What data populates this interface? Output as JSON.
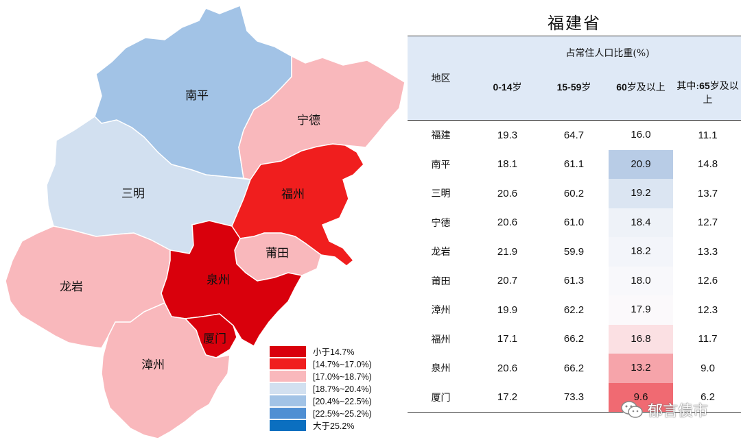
{
  "title": "福建省",
  "colors": {
    "lt_14_7": "#d9000c",
    "r_14_7_17_0": "#f01e1e",
    "r_17_0_18_7": "#f9b8bc",
    "r_18_7_20_4": "#d2e0f0",
    "r_20_4_22_5": "#a2c3e6",
    "r_22_5_25_2": "#4f8fd3",
    "gt_25_2": "#0b6fc0"
  },
  "map": {
    "regions": [
      {
        "name": "南平",
        "bin": "r_20_4_22_5"
      },
      {
        "name": "宁德",
        "bin": "r_17_0_18_7"
      },
      {
        "name": "三明",
        "bin": "r_18_7_20_4"
      },
      {
        "name": "福州",
        "bin": "r_14_7_17_0"
      },
      {
        "name": "莆田",
        "bin": "r_17_0_18_7"
      },
      {
        "name": "龙岩",
        "bin": "r_17_0_18_7"
      },
      {
        "name": "泉州",
        "bin": "lt_14_7"
      },
      {
        "name": "厦门",
        "bin": "lt_14_7"
      },
      {
        "name": "漳州",
        "bin": "r_17_0_18_7"
      }
    ],
    "legend": [
      {
        "label": "小于14.7%",
        "bin": "lt_14_7"
      },
      {
        "label": "[14.7%~17.0%)",
        "bin": "r_14_7_17_0"
      },
      {
        "label": "[17.0%~18.7%)",
        "bin": "r_17_0_18_7"
      },
      {
        "label": "[18.7%~20.4%)",
        "bin": "r_18_7_20_4"
      },
      {
        "label": "[20.4%~22.5%)",
        "bin": "r_20_4_22_5"
      },
      {
        "label": "[22.5%~25.2%)",
        "bin": "r_22_5_25_2"
      },
      {
        "label": "大于25.2%",
        "bin": "gt_25_2"
      }
    ]
  },
  "table": {
    "region_header": "地区",
    "group_header": "占常住人口比重(%)",
    "columns": [
      {
        "num": "0-14",
        "unit": "岁"
      },
      {
        "num": "15-59",
        "unit": "岁"
      },
      {
        "num": "60",
        "unit": "岁及以上"
      },
      {
        "prefix": "其中:",
        "num": "65",
        "unit": "岁及以上"
      }
    ],
    "rows": [
      {
        "name": "福建",
        "v": [
          "19.3",
          "64.7",
          "16.0",
          "11.1"
        ],
        "shade": ""
      },
      {
        "name": "南平",
        "v": [
          "18.1",
          "61.1",
          "20.9",
          "14.8"
        ],
        "shade": "#b8cce6"
      },
      {
        "name": "三明",
        "v": [
          "20.6",
          "60.2",
          "19.2",
          "13.7"
        ],
        "shade": "#dbe5f2"
      },
      {
        "name": "宁德",
        "v": [
          "20.6",
          "61.0",
          "18.4",
          "12.7"
        ],
        "shade": "#eef2f8"
      },
      {
        "name": "龙岩",
        "v": [
          "21.9",
          "59.9",
          "18.2",
          "13.3"
        ],
        "shade": "#f3f5fa"
      },
      {
        "name": "莆田",
        "v": [
          "20.7",
          "61.3",
          "18.0",
          "12.6"
        ],
        "shade": "#f8f8fb"
      },
      {
        "name": "漳州",
        "v": [
          "19.9",
          "62.2",
          "17.9",
          "12.3"
        ],
        "shade": "#fbf9fb"
      },
      {
        "name": "福州",
        "v": [
          "17.1",
          "66.2",
          "16.8",
          "11.7"
        ],
        "shade": "#fbe0e3"
      },
      {
        "name": "泉州",
        "v": [
          "20.6",
          "66.2",
          "13.2",
          "9.0"
        ],
        "shade": "#f6a4aa"
      },
      {
        "name": "厦门",
        "v": [
          "17.2",
          "73.3",
          "9.6",
          "6.2"
        ],
        "shade": "#f06a72"
      }
    ]
  },
  "watermark": {
    "text": "郁言债市",
    "icon": "wechat-icon"
  }
}
